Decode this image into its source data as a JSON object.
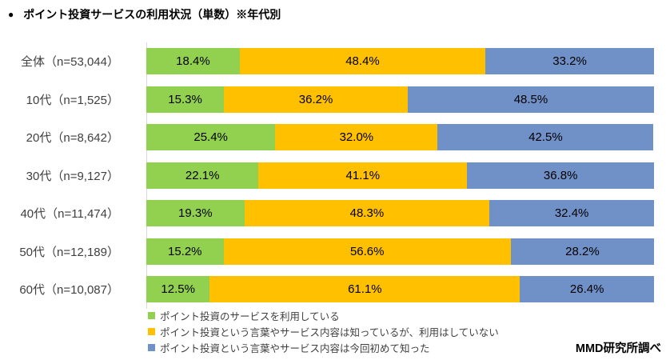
{
  "title": {
    "bullet": "●",
    "text": "ポイント投資サービスの利用状況（単数）※年代別"
  },
  "source": "MMD研究所調べ",
  "chart_data": {
    "type": "bar",
    "subtype": "horizontal-stacked-100",
    "title": "ポイント投資サービスの利用状況（単数）※年代別",
    "categories": [
      "全体（n=53,044）",
      "10代（n=1,525）",
      "20代（n=8,642）",
      "30代（n=9,127）",
      "40代（n=11,474）",
      "50代（n=12,189）",
      "60代（n=10,087）"
    ],
    "series": [
      {
        "name": "ポイント投資のサービスを利用している",
        "color": "#92D050",
        "values": [
          18.4,
          15.3,
          25.4,
          22.1,
          19.3,
          15.2,
          12.5
        ]
      },
      {
        "name": "ポイント投資という言葉やサービス内容は知っているが、利用はしていない",
        "color": "#FFC000",
        "values": [
          48.4,
          36.2,
          32.0,
          41.1,
          48.3,
          56.6,
          61.1
        ]
      },
      {
        "name": "ポイント投資という言葉やサービス内容は今回初めて知った",
        "color": "#7090C8",
        "values": [
          33.2,
          48.5,
          42.5,
          36.8,
          32.4,
          28.2,
          26.4
        ]
      }
    ],
    "value_format": "percent_one_decimal",
    "xlim": [
      0,
      100
    ],
    "grid": false,
    "legend_position": "bottom-left",
    "axis_line_color": "#D9D9D9"
  }
}
